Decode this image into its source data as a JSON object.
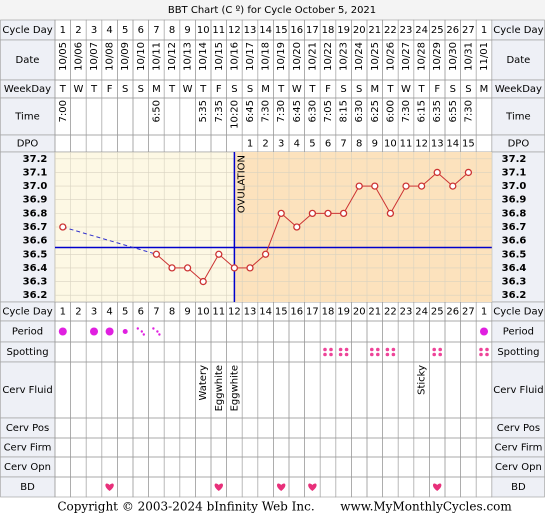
{
  "title": "BBT Chart (C º) for Cycle October 5, 2021",
  "row_labels": {
    "cycle_day": "Cycle Day",
    "date": "Date",
    "weekday": "WeekDay",
    "time": "Time",
    "dpo": "DPO",
    "period": "Period",
    "spotting": "Spotting",
    "cerv_fluid": "Cerv Fluid",
    "cerv_pos": "Cerv Pos",
    "cerv_firm": "Cerv Firm",
    "cerv_opn": "Cerv Opn",
    "bd": "BD"
  },
  "days": {
    "cycle_day": [
      1,
      2,
      3,
      4,
      5,
      6,
      7,
      8,
      9,
      10,
      11,
      12,
      13,
      14,
      15,
      16,
      17,
      18,
      19,
      20,
      21,
      22,
      23,
      24,
      25,
      26,
      27,
      1
    ],
    "date": [
      "10/05",
      "10/06",
      "10/07",
      "10/08",
      "10/09",
      "10/10",
      "10/11",
      "10/12",
      "10/13",
      "10/14",
      "10/15",
      "10/16",
      "10/17",
      "10/18",
      "10/19",
      "10/20",
      "10/21",
      "10/22",
      "10/23",
      "10/24",
      "10/25",
      "10/26",
      "10/27",
      "10/28",
      "10/29",
      "10/30",
      "10/31",
      "11/01"
    ],
    "weekday": [
      "T",
      "W",
      "T",
      "F",
      "S",
      "S",
      "M",
      "T",
      "W",
      "T",
      "F",
      "S",
      "S",
      "M",
      "T",
      "W",
      "T",
      "F",
      "S",
      "S",
      "M",
      "T",
      "W",
      "T",
      "F",
      "S",
      "S",
      "M"
    ],
    "time": [
      "7:00",
      null,
      null,
      null,
      null,
      null,
      "6:50",
      null,
      null,
      "5:35",
      "7:35",
      "10:20",
      "6:45",
      "7:30",
      "7:30",
      "6:45",
      "6:30",
      "7:05",
      "8:15",
      "6:30",
      "6:25",
      "6:00",
      "7:30",
      "6:15",
      "6:35",
      "6:55",
      "7:30",
      null
    ],
    "dpo": [
      null,
      null,
      null,
      null,
      null,
      null,
      null,
      null,
      null,
      null,
      null,
      null,
      1,
      2,
      3,
      4,
      5,
      6,
      7,
      8,
      9,
      10,
      11,
      12,
      13,
      14,
      15,
      null
    ]
  },
  "chart_data": {
    "type": "line",
    "ylim": [
      36.15,
      37.25
    ],
    "yticks": [
      37.2,
      37.1,
      {
        "value": 37,
        "label": "37.0"
      },
      36.9,
      36.8,
      36.7,
      36.6,
      36.5,
      36.4,
      36.3,
      36.2
    ],
    "values": [
      36.7,
      null,
      null,
      null,
      null,
      null,
      36.5,
      36.4,
      36.4,
      36.3,
      36.5,
      36.4,
      36.4,
      36.5,
      36.8,
      36.7,
      36.8,
      36.8,
      36.8,
      37.0,
      37.0,
      36.8,
      37.0,
      37.0,
      37.1,
      37.0,
      37.1,
      null
    ],
    "color": "#cc3333",
    "coverline": 36.55,
    "coverline_color": "#0000cc",
    "ovulation_day": 12,
    "ovulation_label": "OVULATION",
    "grid": true
  },
  "period": [
    "heavy",
    null,
    "heavy",
    "heavy",
    "light",
    "spotting",
    "spotting",
    null,
    null,
    null,
    null,
    null,
    null,
    null,
    null,
    null,
    null,
    null,
    null,
    null,
    null,
    null,
    null,
    null,
    null,
    null,
    null,
    "heavy"
  ],
  "spotting": [
    false,
    false,
    false,
    false,
    false,
    false,
    false,
    false,
    false,
    false,
    false,
    false,
    false,
    false,
    false,
    false,
    false,
    true,
    true,
    false,
    true,
    true,
    false,
    false,
    true,
    false,
    false,
    true
  ],
  "cerv_fluid": [
    null,
    null,
    null,
    null,
    null,
    null,
    null,
    null,
    null,
    "Watery",
    "Eggwhite",
    "Eggwhite",
    null,
    null,
    null,
    null,
    null,
    null,
    null,
    null,
    null,
    null,
    null,
    "Sticky",
    null,
    null,
    null,
    null
  ],
  "bd": [
    false,
    false,
    false,
    true,
    false,
    false,
    false,
    false,
    false,
    false,
    true,
    false,
    false,
    false,
    true,
    false,
    true,
    false,
    false,
    false,
    false,
    false,
    false,
    false,
    true,
    false,
    false,
    false
  ],
  "footer": {
    "copyright": "Copyright © 2003-2024 bInfinity Web Inc.",
    "site": "www.MyMonthlyCycles.com"
  }
}
